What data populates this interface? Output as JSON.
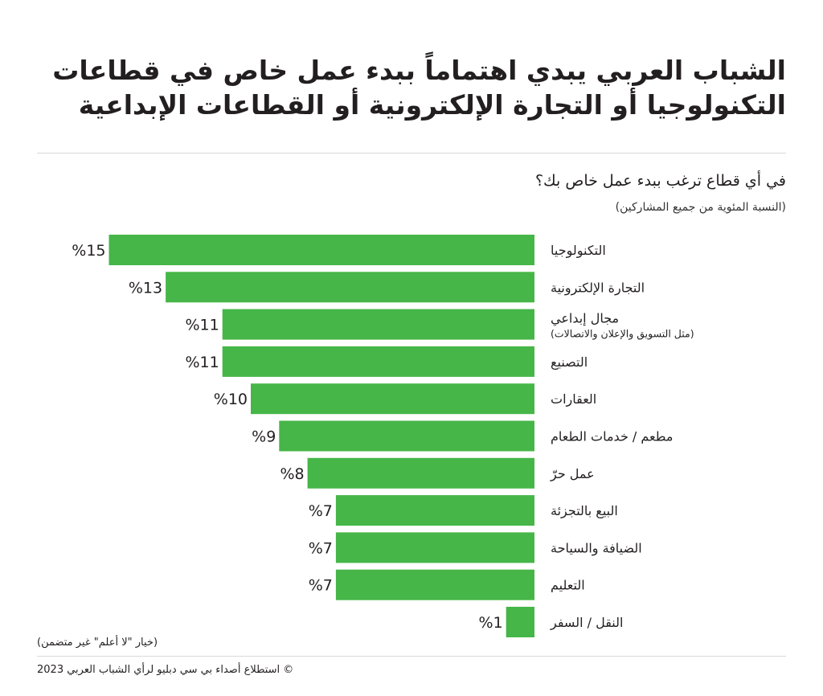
{
  "header": {
    "title": "الشباب العربي يبدي اهتماماً ببدء عمل خاص في قطاعات التكنولوجيا أو التجارة الإلكترونية أو القطاعات الإبداعية",
    "question": "في أي قطاع ترغب ببدء عمل خاص بك؟",
    "subtitle": "(النسبة المئوية من جميع المشاركين)"
  },
  "colors": {
    "bar": "#46b648",
    "text": "#231f20",
    "rule": "#d9d9d9"
  },
  "chart_data": {
    "type": "bar",
    "orientation": "horizontal",
    "title": "في أي قطاع ترغب ببدء عمل خاص بك؟",
    "ylabel": "(النسبة المئوية من جميع المشاركين)",
    "unit": "%",
    "xlim": [
      0,
      15
    ],
    "categories": [
      {
        "label": "التكنولوجيا",
        "sub": "",
        "value": 15,
        "value_label": "%15"
      },
      {
        "label": "التجارة الإلكترونية",
        "sub": "",
        "value": 13,
        "value_label": "%13"
      },
      {
        "label": "مجال إبداعي",
        "sub": "(مثل التسويق والإعلان والاتصالات)",
        "value": 11,
        "value_label": "%11"
      },
      {
        "label": "التصنيع",
        "sub": "",
        "value": 11,
        "value_label": "%11"
      },
      {
        "label": "العقارات",
        "sub": "",
        "value": 10,
        "value_label": "%10"
      },
      {
        "label": "مطعم / خدمات الطعام",
        "sub": "",
        "value": 9,
        "value_label": "%9"
      },
      {
        "label": "عمل حرّ",
        "sub": "",
        "value": 8,
        "value_label": "%8"
      },
      {
        "label": "البيع بالتجزئة",
        "sub": "",
        "value": 7,
        "value_label": "%7"
      },
      {
        "label": "الضيافة والسياحة",
        "sub": "",
        "value": 7,
        "value_label": "%7"
      },
      {
        "label": "التعليم",
        "sub": "",
        "value": 7,
        "value_label": "%7"
      },
      {
        "label": "النقل / السفر",
        "sub": "",
        "value": 1,
        "value_label": "%1"
      }
    ]
  },
  "footer": {
    "note": "(خيار \"لا أعلم\" غير متضمن)",
    "copyright": "© استطلاع أصداء بي سي دبليو لرأي الشباب العربي 2023"
  }
}
